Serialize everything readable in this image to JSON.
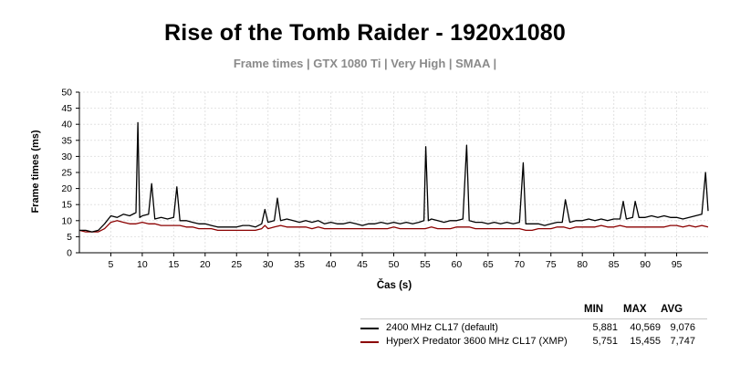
{
  "title": "Rise of the Tomb Raider - 1920x1080",
  "subtitle": "Frame times | GTX 1080 Ti | Very High | SMAA |",
  "chart_data": {
    "type": "line",
    "title": "Rise of the Tomb Raider - 1920x1080",
    "subtitle": "Frame times | GTX 1080 Ti | Very High | SMAA |",
    "xlabel": "Čas (s)",
    "ylabel": "Frame times (ms)",
    "xlim": [
      0,
      100
    ],
    "ylim": [
      0,
      50
    ],
    "x_ticks": [
      5,
      10,
      15,
      20,
      25,
      30,
      35,
      40,
      45,
      50,
      55,
      60,
      65,
      70,
      75,
      80,
      85,
      90,
      95
    ],
    "y_ticks": [
      0,
      5,
      10,
      15,
      20,
      25,
      30,
      35,
      40,
      45,
      50
    ],
    "grid": true,
    "legend_position": "bottom-right",
    "legend_headers": [
      "MIN",
      "MAX",
      "AVG"
    ],
    "series": [
      {
        "name": "2400 MHz CL17 (default)",
        "color": "#000000",
        "stats": [
          "5,881",
          "40,569",
          "9,076"
        ],
        "x": [
          0,
          1,
          2,
          3,
          4,
          5,
          6,
          7,
          8,
          9,
          9.3,
          9.6,
          10,
          11,
          11.5,
          12,
          13,
          14,
          15,
          15.5,
          16,
          17,
          18,
          19,
          20,
          21,
          22,
          23,
          24,
          25,
          26,
          27,
          28,
          29,
          29.5,
          30,
          31,
          31.5,
          32,
          33,
          34,
          35,
          36,
          37,
          38,
          39,
          40,
          41,
          42,
          43,
          44,
          45,
          46,
          47,
          48,
          49,
          50,
          51,
          52,
          53,
          54,
          54.8,
          55.1,
          55.5,
          56,
          57,
          58,
          59,
          60,
          61,
          61.6,
          62,
          63,
          64,
          65,
          66,
          67,
          68,
          69,
          70,
          70.6,
          71,
          72,
          73,
          74,
          75,
          76,
          76.8,
          77.3,
          78,
          79,
          80,
          81,
          82,
          83,
          84,
          85,
          86,
          86.5,
          87,
          88,
          88.4,
          89,
          90,
          91,
          92,
          93,
          94,
          95,
          96,
          97,
          98,
          99,
          99.6,
          100
        ],
        "y": [
          7,
          7,
          6.5,
          7,
          9,
          11.5,
          11,
          12,
          11.5,
          12.5,
          40.5,
          11,
          11.5,
          12,
          21.5,
          10.5,
          11,
          10.5,
          11,
          20.5,
          10,
          10,
          9.5,
          9,
          9,
          8.5,
          8,
          8,
          8,
          8,
          8.5,
          8.5,
          8,
          9,
          13.5,
          9.5,
          10,
          17,
          10,
          10.5,
          10,
          9.5,
          10,
          9.5,
          10,
          9,
          9.5,
          9,
          9,
          9.5,
          9,
          8.5,
          9,
          9,
          9.5,
          9,
          9.5,
          9,
          9.5,
          9,
          9.5,
          10,
          33,
          10,
          10.5,
          10,
          9.5,
          10,
          10,
          10.5,
          33.5,
          10,
          9.5,
          9.5,
          9,
          9.5,
          9,
          9.5,
          9,
          9.5,
          28,
          9,
          9,
          9,
          8.5,
          9,
          9.5,
          9.5,
          16.5,
          9.5,
          10,
          10,
          10.5,
          10,
          10.5,
          10,
          10.5,
          10.5,
          16,
          10.5,
          11,
          16,
          11,
          11,
          11.5,
          11,
          11.5,
          11,
          11,
          10.5,
          11,
          11.5,
          12,
          25,
          13
        ]
      },
      {
        "name": "HyperX Predator 3600 MHz CL17 (XMP)",
        "color": "#8b0000",
        "stats": [
          "5,751",
          "15,455",
          "7,747"
        ],
        "x": [
          0,
          1,
          2,
          3,
          4,
          5,
          6,
          7,
          8,
          9,
          10,
          11,
          12,
          13,
          14,
          15,
          16,
          17,
          18,
          19,
          20,
          21,
          22,
          23,
          24,
          25,
          26,
          27,
          28,
          29,
          29.5,
          30,
          31,
          32,
          33,
          34,
          35,
          36,
          37,
          38,
          39,
          40,
          41,
          42,
          43,
          44,
          45,
          46,
          47,
          48,
          49,
          50,
          51,
          52,
          53,
          54,
          55,
          56,
          57,
          58,
          59,
          60,
          61,
          62,
          63,
          64,
          65,
          66,
          67,
          68,
          69,
          70,
          71,
          72,
          73,
          74,
          75,
          76,
          77,
          78,
          79,
          80,
          81,
          82,
          83,
          84,
          85,
          86,
          87,
          88,
          89,
          90,
          91,
          92,
          93,
          94,
          95,
          96,
          97,
          98,
          99,
          100
        ],
        "y": [
          7,
          6.5,
          6.5,
          6.5,
          7.5,
          9.5,
          10,
          9.5,
          9,
          9,
          9.5,
          9,
          9,
          8.5,
          8.5,
          8.5,
          8.5,
          8,
          8,
          7.5,
          7.5,
          7.5,
          7,
          7,
          7,
          7,
          7,
          7,
          7,
          7.5,
          8.5,
          7.5,
          8,
          8.5,
          8,
          8,
          8,
          8,
          7.5,
          8,
          7.5,
          7.5,
          7.5,
          7.5,
          7.5,
          7.5,
          7.5,
          7.5,
          7.5,
          7.5,
          7.5,
          8,
          7.5,
          7.5,
          7.5,
          7.5,
          7.5,
          8,
          7.5,
          7.5,
          7.5,
          8,
          8,
          8,
          7.5,
          7.5,
          7.5,
          7.5,
          7.5,
          7.5,
          7.5,
          7.5,
          7,
          7,
          7.5,
          7.5,
          7.5,
          8,
          8,
          7.5,
          8,
          8,
          8,
          8,
          8.5,
          8,
          8,
          8.5,
          8,
          8,
          8,
          8,
          8,
          8,
          8,
          8.5,
          8.5,
          8,
          8.5,
          8,
          8.5,
          8
        ]
      }
    ]
  }
}
